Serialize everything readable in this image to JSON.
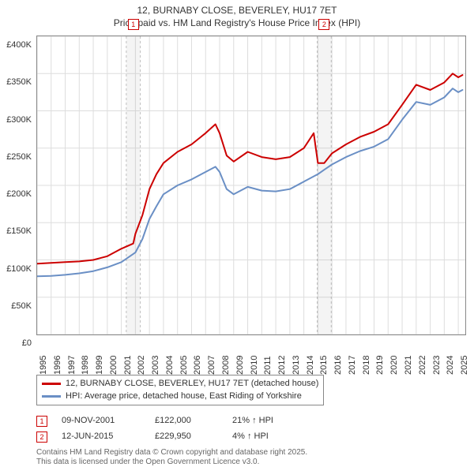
{
  "title_line1": "12, BURNABY CLOSE, BEVERLEY, HU17 7ET",
  "title_line2": "Price paid vs. HM Land Registry's House Price Index (HPI)",
  "chart": {
    "type": "line",
    "background_color": "#ffffff",
    "grid_color": "#dddddd",
    "axis_color": "#888888",
    "x_years": [
      1995,
      1996,
      1997,
      1998,
      1999,
      2000,
      2001,
      2002,
      2003,
      2004,
      2005,
      2006,
      2007,
      2008,
      2009,
      2010,
      2011,
      2012,
      2013,
      2014,
      2015,
      2016,
      2017,
      2018,
      2019,
      2020,
      2021,
      2022,
      2023,
      2024,
      2025
    ],
    "x_first_index": 0,
    "xlim": [
      1995,
      2025.5
    ],
    "ylim": [
      0,
      400000
    ],
    "ytick_step": 50000,
    "ylabels": [
      "£0",
      "£50K",
      "£100K",
      "£150K",
      "£200K",
      "£250K",
      "£300K",
      "£350K",
      "£400K"
    ],
    "label_fontsize": 11,
    "title_fontsize": 12,
    "series": [
      {
        "name": "12, BURNABY CLOSE, BEVERLEY, HU17 7ET (detached house)",
        "color": "#cc0000",
        "line_width": 2,
        "data": [
          [
            1995,
            95000
          ],
          [
            1996,
            96000
          ],
          [
            1997,
            97000
          ],
          [
            1998,
            98000
          ],
          [
            1999,
            100000
          ],
          [
            2000,
            105000
          ],
          [
            2001,
            115000
          ],
          [
            2001.85,
            122000
          ],
          [
            2002,
            135000
          ],
          [
            2002.5,
            160000
          ],
          [
            2003,
            195000
          ],
          [
            2003.5,
            215000
          ],
          [
            2004,
            230000
          ],
          [
            2005,
            245000
          ],
          [
            2006,
            255000
          ],
          [
            2007,
            270000
          ],
          [
            2007.7,
            282000
          ],
          [
            2008,
            270000
          ],
          [
            2008.5,
            240000
          ],
          [
            2009,
            232000
          ],
          [
            2010,
            245000
          ],
          [
            2011,
            238000
          ],
          [
            2012,
            235000
          ],
          [
            2013,
            238000
          ],
          [
            2014,
            250000
          ],
          [
            2014.7,
            270000
          ],
          [
            2015,
            230000
          ],
          [
            2015.45,
            229950
          ],
          [
            2016,
            243000
          ],
          [
            2017,
            255000
          ],
          [
            2018,
            265000
          ],
          [
            2019,
            272000
          ],
          [
            2020,
            282000
          ],
          [
            2021,
            308000
          ],
          [
            2022,
            335000
          ],
          [
            2023,
            328000
          ],
          [
            2024,
            338000
          ],
          [
            2024.6,
            350000
          ],
          [
            2025,
            345000
          ],
          [
            2025.3,
            348000
          ]
        ]
      },
      {
        "name": "HPI: Average price, detached house, East Riding of Yorkshire",
        "color": "#6a8fc5",
        "line_width": 2,
        "data": [
          [
            1995,
            78000
          ],
          [
            1996,
            78500
          ],
          [
            1997,
            80000
          ],
          [
            1998,
            82000
          ],
          [
            1999,
            85000
          ],
          [
            2000,
            90000
          ],
          [
            2001,
            97000
          ],
          [
            2002,
            110000
          ],
          [
            2002.5,
            128000
          ],
          [
            2003,
            155000
          ],
          [
            2003.5,
            172000
          ],
          [
            2004,
            188000
          ],
          [
            2005,
            200000
          ],
          [
            2006,
            208000
          ],
          [
            2007,
            218000
          ],
          [
            2007.7,
            225000
          ],
          [
            2008,
            218000
          ],
          [
            2008.5,
            195000
          ],
          [
            2009,
            188000
          ],
          [
            2010,
            198000
          ],
          [
            2011,
            193000
          ],
          [
            2012,
            192000
          ],
          [
            2013,
            195000
          ],
          [
            2014,
            205000
          ],
          [
            2015,
            215000
          ],
          [
            2015.45,
            221000
          ],
          [
            2016,
            228000
          ],
          [
            2017,
            238000
          ],
          [
            2018,
            246000
          ],
          [
            2019,
            252000
          ],
          [
            2020,
            262000
          ],
          [
            2021,
            288000
          ],
          [
            2022,
            312000
          ],
          [
            2023,
            308000
          ],
          [
            2024,
            318000
          ],
          [
            2024.6,
            330000
          ],
          [
            2025,
            325000
          ],
          [
            2025.3,
            328000
          ]
        ]
      }
    ],
    "sale_markers": [
      {
        "n": "1",
        "x": 2001.85,
        "color": "#cc0000"
      },
      {
        "n": "2",
        "x": 2015.45,
        "color": "#cc0000"
      }
    ],
    "shade_halfwidth_years": 0.5
  },
  "legend": {
    "rows": [
      {
        "color": "#cc0000",
        "label": "12, BURNABY CLOSE, BEVERLEY, HU17 7ET (detached house)"
      },
      {
        "color": "#6a8fc5",
        "label": "HPI: Average price, detached house, East Riding of Yorkshire"
      }
    ]
  },
  "sales": [
    {
      "n": "1",
      "color": "#cc0000",
      "date": "09-NOV-2001",
      "price": "£122,000",
      "delta": "21% ↑ HPI"
    },
    {
      "n": "2",
      "color": "#cc0000",
      "date": "12-JUN-2015",
      "price": "£229,950",
      "delta": "4% ↑ HPI"
    }
  ],
  "footnote_line1": "Contains HM Land Registry data © Crown copyright and database right 2025.",
  "footnote_line2": "This data is licensed under the Open Government Licence v3.0."
}
